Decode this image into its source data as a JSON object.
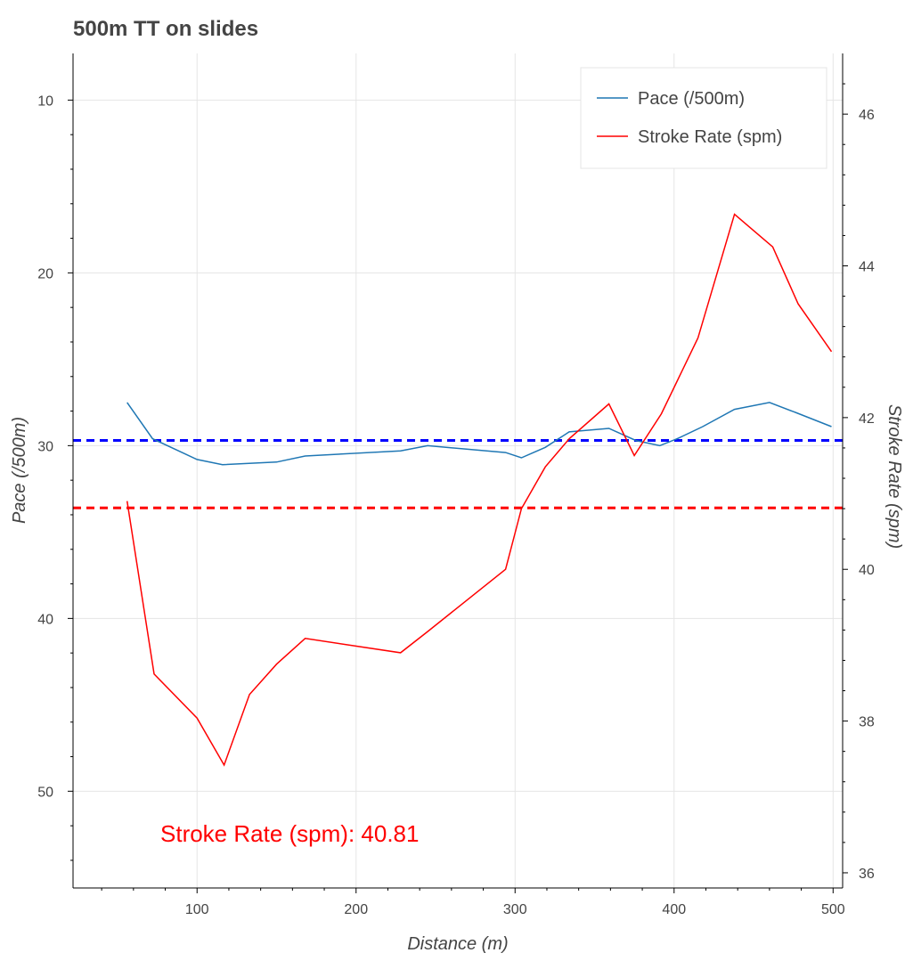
{
  "chart_data": {
    "type": "line",
    "title": "500m TT on slides",
    "xlabel": "Distance (m)",
    "ylabel": "Pace (/500m)",
    "y2label": "Stroke Rate (spm)",
    "xlim": [
      22,
      506
    ],
    "ylim": [
      55.6,
      7.3
    ],
    "y2lim": [
      35.8,
      46.8
    ],
    "y_inverted": true,
    "grid": true,
    "legend_position": "top-right",
    "x_ticks": [
      100,
      200,
      300,
      400,
      500
    ],
    "y_ticks": [
      10,
      20,
      30,
      40,
      50
    ],
    "y2_ticks": [
      36,
      38,
      40,
      42,
      44,
      46
    ],
    "series": [
      {
        "name": "Pace (/500m)",
        "axis": "left",
        "color": "#1f77b4",
        "x": [
          56,
          72,
          100,
          116,
          150,
          168,
          228,
          245,
          294,
          304,
          319,
          334,
          359,
          376,
          391,
          402,
          418,
          438,
          460,
          477,
          499
        ],
        "y": [
          27.5,
          29.6,
          30.8,
          31.1,
          30.95,
          30.6,
          30.3,
          30.0,
          30.4,
          30.7,
          30.1,
          29.2,
          29.0,
          29.7,
          30.0,
          29.6,
          28.9,
          27.9,
          27.5,
          28.1,
          28.9
        ]
      },
      {
        "name": "Stroke Rate (spm)",
        "axis": "right",
        "color": "#ff0000",
        "x": [
          56,
          73,
          100,
          117,
          133,
          150,
          168,
          228,
          245,
          294,
          304,
          319,
          334,
          359,
          375,
          392,
          415,
          438,
          462,
          478,
          499
        ],
        "y": [
          40.9,
          38.62,
          38.04,
          37.42,
          38.35,
          38.75,
          39.09,
          38.9,
          39.18,
          40.0,
          40.8,
          41.35,
          41.72,
          42.18,
          41.5,
          42.05,
          43.05,
          44.68,
          44.25,
          43.5,
          42.87
        ]
      }
    ],
    "reference_lines": [
      {
        "axis": "left",
        "y": 29.7,
        "color": "#0000ff",
        "style": "dashed"
      },
      {
        "axis": "right",
        "y": 40.81,
        "color": "#ff0000",
        "style": "dashed"
      }
    ],
    "annotations": [
      {
        "text": "Stroke Rate (spm):  40.81",
        "color": "#ff0000"
      }
    ]
  }
}
